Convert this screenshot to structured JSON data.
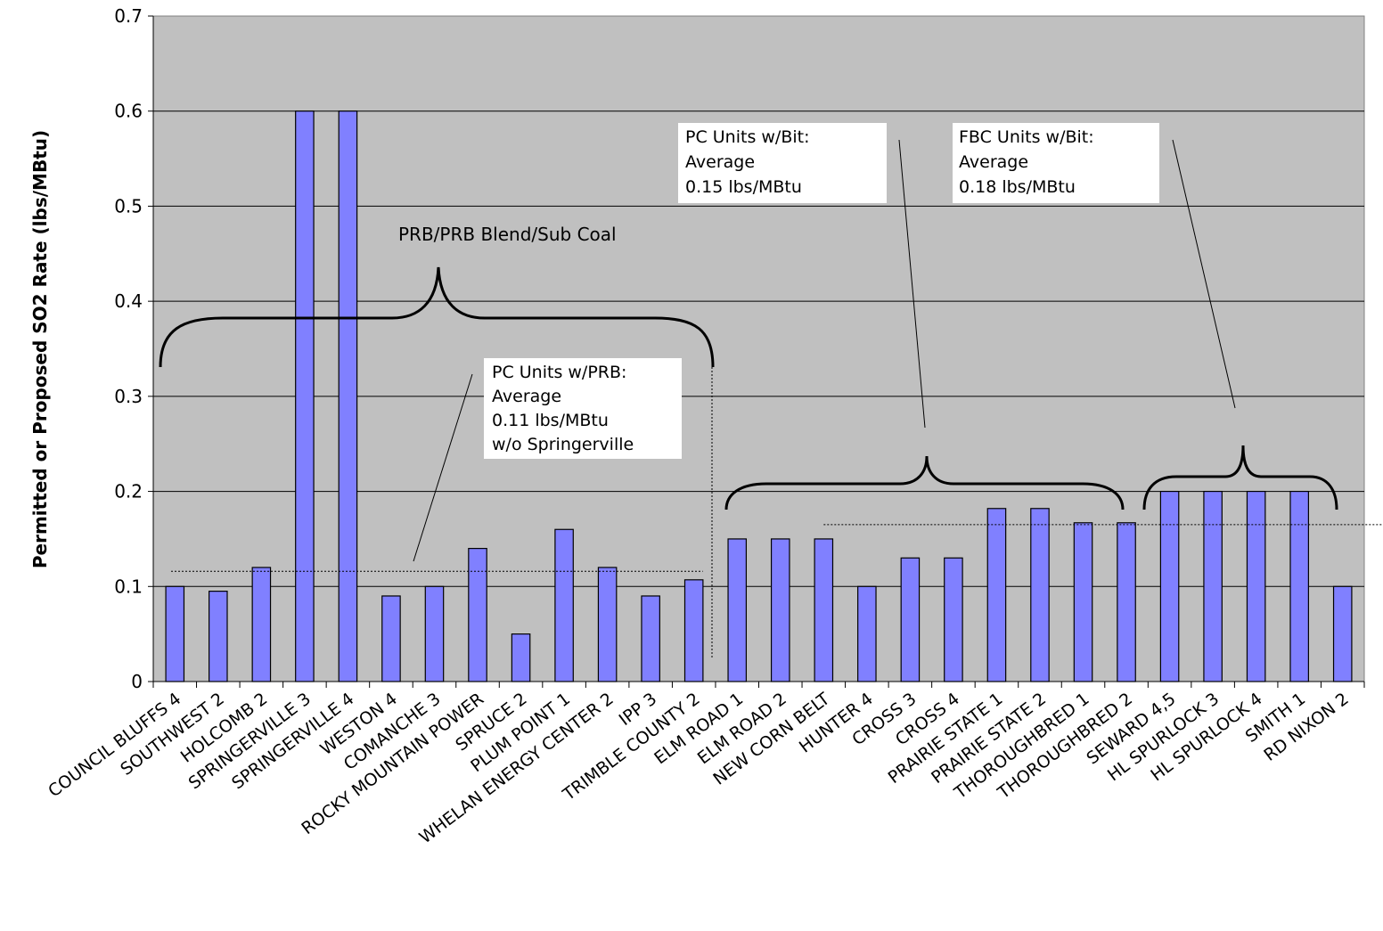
{
  "chart_data": {
    "type": "bar",
    "title": "",
    "xlabel": "",
    "ylabel": "Permitted or Proposed SO2 Rate (lbs/MBtu)",
    "ylim": [
      0,
      0.7
    ],
    "yticks": [
      "0",
      "0.1",
      "0.2",
      "0.3",
      "0.4",
      "0.5",
      "0.6",
      "0.7"
    ],
    "grid": true,
    "legend": "none",
    "colors": {
      "bar": "#8080ff",
      "plot_background": "#c0c0c0"
    },
    "categories": [
      "COUNCIL BLUFFS 4",
      "SOUTHWEST 2",
      "HOLCOMB 2",
      "SPRINGERVILLE 3",
      "SPRINGERVILLE 4",
      "WESTON 4",
      "COMANCHE 3",
      "ROCKY MOUNTAIN POWER",
      "SPRUCE 2",
      "PLUM POINT 1",
      "WHELAN ENERGY CENTER 2",
      "IPP 3",
      "TRIMBLE COUNTY 2",
      "ELM ROAD 1",
      "ELM ROAD 2",
      "NEW CORN BELT",
      "HUNTER 4",
      "CROSS 3",
      "CROSS 4",
      "PRAIRIE STATE 1",
      "PRAIRIE STATE 2",
      "THOROUGHBRED 1",
      "THOROUGHBRED 2",
      "SEWARD 4,5",
      "HL SPURLOCK 3",
      "HL SPURLOCK 4",
      "SMITH 1",
      "RD NIXON 2"
    ],
    "values": [
      0.1,
      0.095,
      0.12,
      0.6,
      0.6,
      0.09,
      0.1,
      0.14,
      0.05,
      0.16,
      0.12,
      0.09,
      0.107,
      0.15,
      0.15,
      0.15,
      0.1,
      0.13,
      0.13,
      0.182,
      0.182,
      0.167,
      0.167,
      0.2,
      0.2,
      0.2,
      0.2,
      0.1
    ],
    "annotations": {
      "group_label": "PRB/PRB Blend/Sub Coal",
      "pc_prb": [
        "PC Units w/PRB:",
        "Average",
        "0.11 lbs/MBtu",
        "w/o Springerville"
      ],
      "pc_bit": [
        "PC Units w/Bit:",
        "Average",
        "0.15 lbs/MBtu"
      ],
      "fbc_bit": [
        "FBC Units w/Bit:",
        "Average",
        "0.18 lbs/MBtu"
      ]
    },
    "average_lines": [
      {
        "from": 0,
        "to": 12,
        "value": 0.116
      },
      {
        "from": 15,
        "to": 27,
        "value": 0.165
      }
    ]
  }
}
